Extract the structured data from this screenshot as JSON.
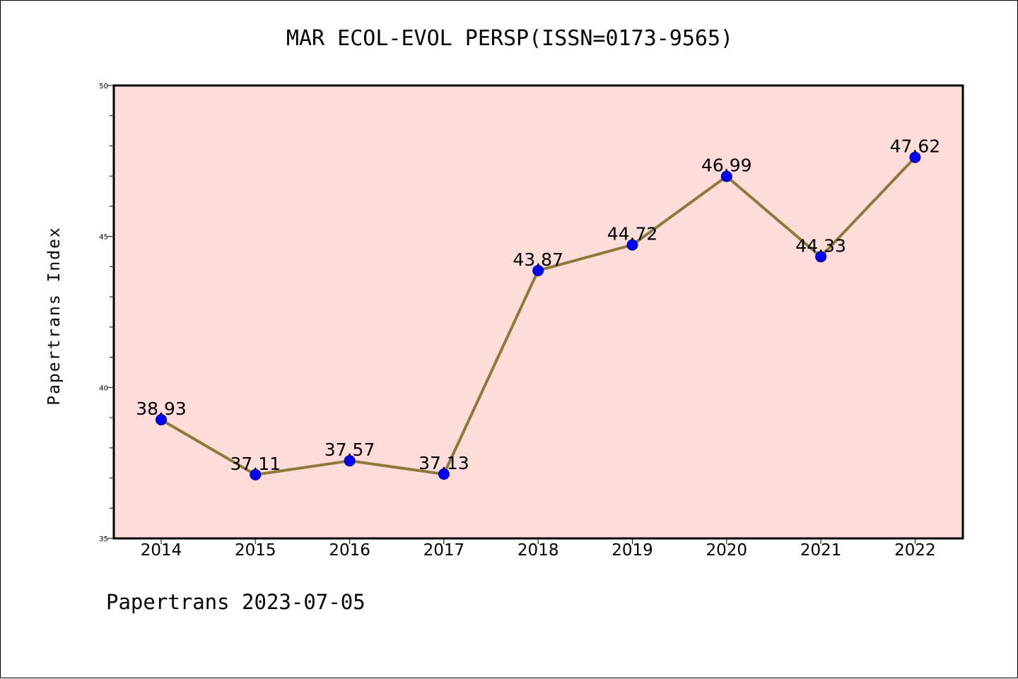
{
  "title": "MAR ECOL-EVOL PERSP(ISSN=0173-9565)",
  "footer": "Papertrans 2023-07-05",
  "chart_data": {
    "type": "line",
    "title": "MAR ECOL-EVOL PERSP(ISSN=0173-9565)",
    "xlabel": "",
    "ylabel": "Papertrans Index",
    "categories": [
      "2014",
      "2015",
      "2016",
      "2017",
      "2018",
      "2019",
      "2020",
      "2021",
      "2022"
    ],
    "series": [
      {
        "values": [
          38.93,
          37.11,
          37.57,
          37.13,
          43.87,
          44.72,
          46.99,
          44.33,
          47.62
        ],
        "labels": [
          "38.93",
          "37.11",
          "37.57",
          "37.13",
          "43.87",
          "44.72",
          "46.99",
          "44.33",
          "47.62"
        ]
      }
    ],
    "ylim": [
      35,
      50
    ],
    "yticks": [
      "35",
      "40",
      "45",
      "50"
    ],
    "grid": false,
    "legend": "none",
    "colors": {
      "plot_background": "#fddcd9",
      "line": "#8c7a3a",
      "marker": "#0000ff"
    }
  }
}
